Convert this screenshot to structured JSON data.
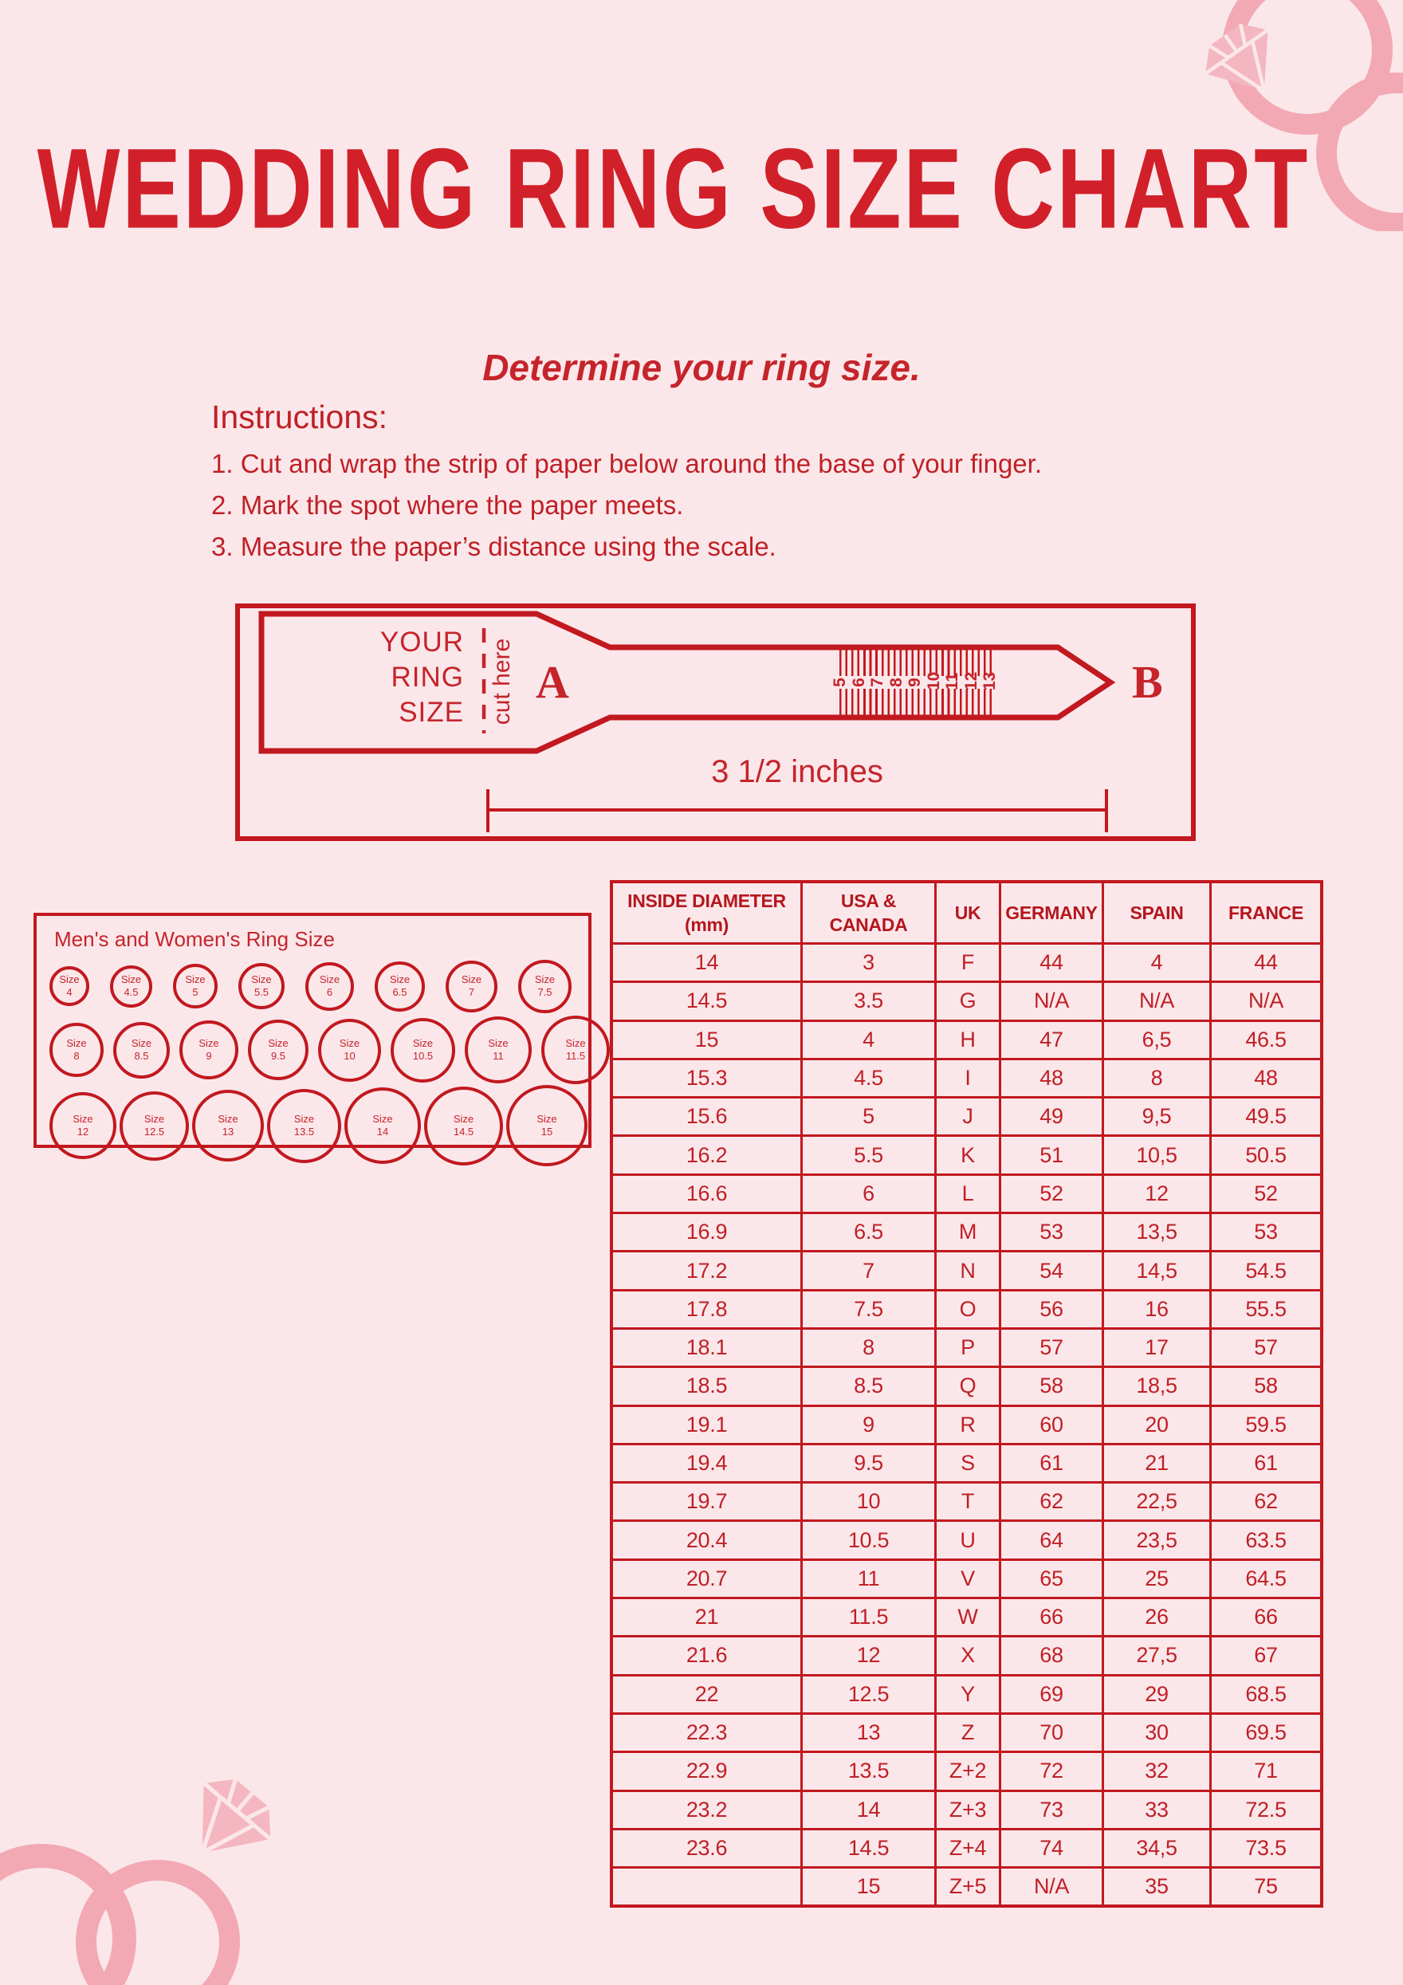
{
  "page": {
    "background_color": "#fbe7ea",
    "accent_line_color": "#c2181f",
    "text_color": "#bf2026",
    "title_color": "#d1202a",
    "decoration_pink": "#f2a9b3"
  },
  "header": {
    "title": "WEDDING RING SIZE CHART",
    "subtitle": "Determine your ring size."
  },
  "instructions": {
    "heading": "Instructions:",
    "items": [
      "1. Cut and wrap the strip of paper below around the base of your finger.",
      "2. Mark the spot where the paper meets.",
      "3. Measure the paper’s distance using the scale."
    ]
  },
  "sizer": {
    "label_lines": [
      "YOUR",
      "RING",
      "SIZE"
    ],
    "cut_label": "cut here",
    "point_a": "A",
    "point_b": "B",
    "ruler_numbers": [
      "5",
      "6",
      "7",
      "8",
      "9",
      "10",
      "11",
      "12",
      "13"
    ],
    "length_label": "3 1/2 inches"
  },
  "ring_sizes": {
    "title": "Men's and Women's Ring Size",
    "prefix": "Size",
    "rows": [
      [
        "4",
        "4.5",
        "5",
        "5.5",
        "6",
        "6.5",
        "7",
        "7.5"
      ],
      [
        "8",
        "8.5",
        "9",
        "9.5",
        "10",
        "10.5",
        "11",
        "11.5"
      ],
      [
        "12",
        "12.5",
        "13",
        "13.5",
        "14",
        "14.5",
        "15"
      ]
    ]
  },
  "table": {
    "headers": [
      [
        "INSIDE DIAMETER",
        "(mm)"
      ],
      [
        "USA &",
        "CANADA"
      ],
      [
        "UK"
      ],
      [
        "GERMANY"
      ],
      [
        "SPAIN"
      ],
      [
        "FRANCE"
      ]
    ],
    "rows": [
      [
        "14",
        "3",
        "F",
        "44",
        "4",
        "44"
      ],
      [
        "14.5",
        "3.5",
        "G",
        "N/A",
        "N/A",
        "N/A"
      ],
      [
        "15",
        "4",
        "H",
        "47",
        "6,5",
        "46.5"
      ],
      [
        "15.3",
        "4.5",
        "I",
        "48",
        "8",
        "48"
      ],
      [
        "15.6",
        "5",
        "J",
        "49",
        "9,5",
        "49.5"
      ],
      [
        "16.2",
        "5.5",
        "K",
        "51",
        "10,5",
        "50.5"
      ],
      [
        "16.6",
        "6",
        "L",
        "52",
        "12",
        "52"
      ],
      [
        "16.9",
        "6.5",
        "M",
        "53",
        "13,5",
        "53"
      ],
      [
        "17.2",
        "7",
        "N",
        "54",
        "14,5",
        "54.5"
      ],
      [
        "17.8",
        "7.5",
        "O",
        "56",
        "16",
        "55.5"
      ],
      [
        "18.1",
        "8",
        "P",
        "57",
        "17",
        "57"
      ],
      [
        "18.5",
        "8.5",
        "Q",
        "58",
        "18,5",
        "58"
      ],
      [
        "19.1",
        "9",
        "R",
        "60",
        "20",
        "59.5"
      ],
      [
        "19.4",
        "9.5",
        "S",
        "61",
        "21",
        "61"
      ],
      [
        "19.7",
        "10",
        "T",
        "62",
        "22,5",
        "62"
      ],
      [
        "20.4",
        "10.5",
        "U",
        "64",
        "23,5",
        "63.5"
      ],
      [
        "20.7",
        "11",
        "V",
        "65",
        "25",
        "64.5"
      ],
      [
        "21",
        "11.5",
        "W",
        "66",
        "26",
        "66"
      ],
      [
        "21.6",
        "12",
        "X",
        "68",
        "27,5",
        "67"
      ],
      [
        "22",
        "12.5",
        "Y",
        "69",
        "29",
        "68.5"
      ],
      [
        "22.3",
        "13",
        "Z",
        "70",
        "30",
        "69.5"
      ],
      [
        "22.9",
        "13.5",
        "Z+2",
        "72",
        "32",
        "71"
      ],
      [
        "23.2",
        "14",
        "Z+3",
        "73",
        "33",
        "72.5"
      ],
      [
        "23.6",
        "14.5",
        "Z+4",
        "74",
        "34,5",
        "73.5"
      ],
      [
        "",
        "15",
        "Z+5",
        "N/A",
        "35",
        "75"
      ]
    ]
  }
}
